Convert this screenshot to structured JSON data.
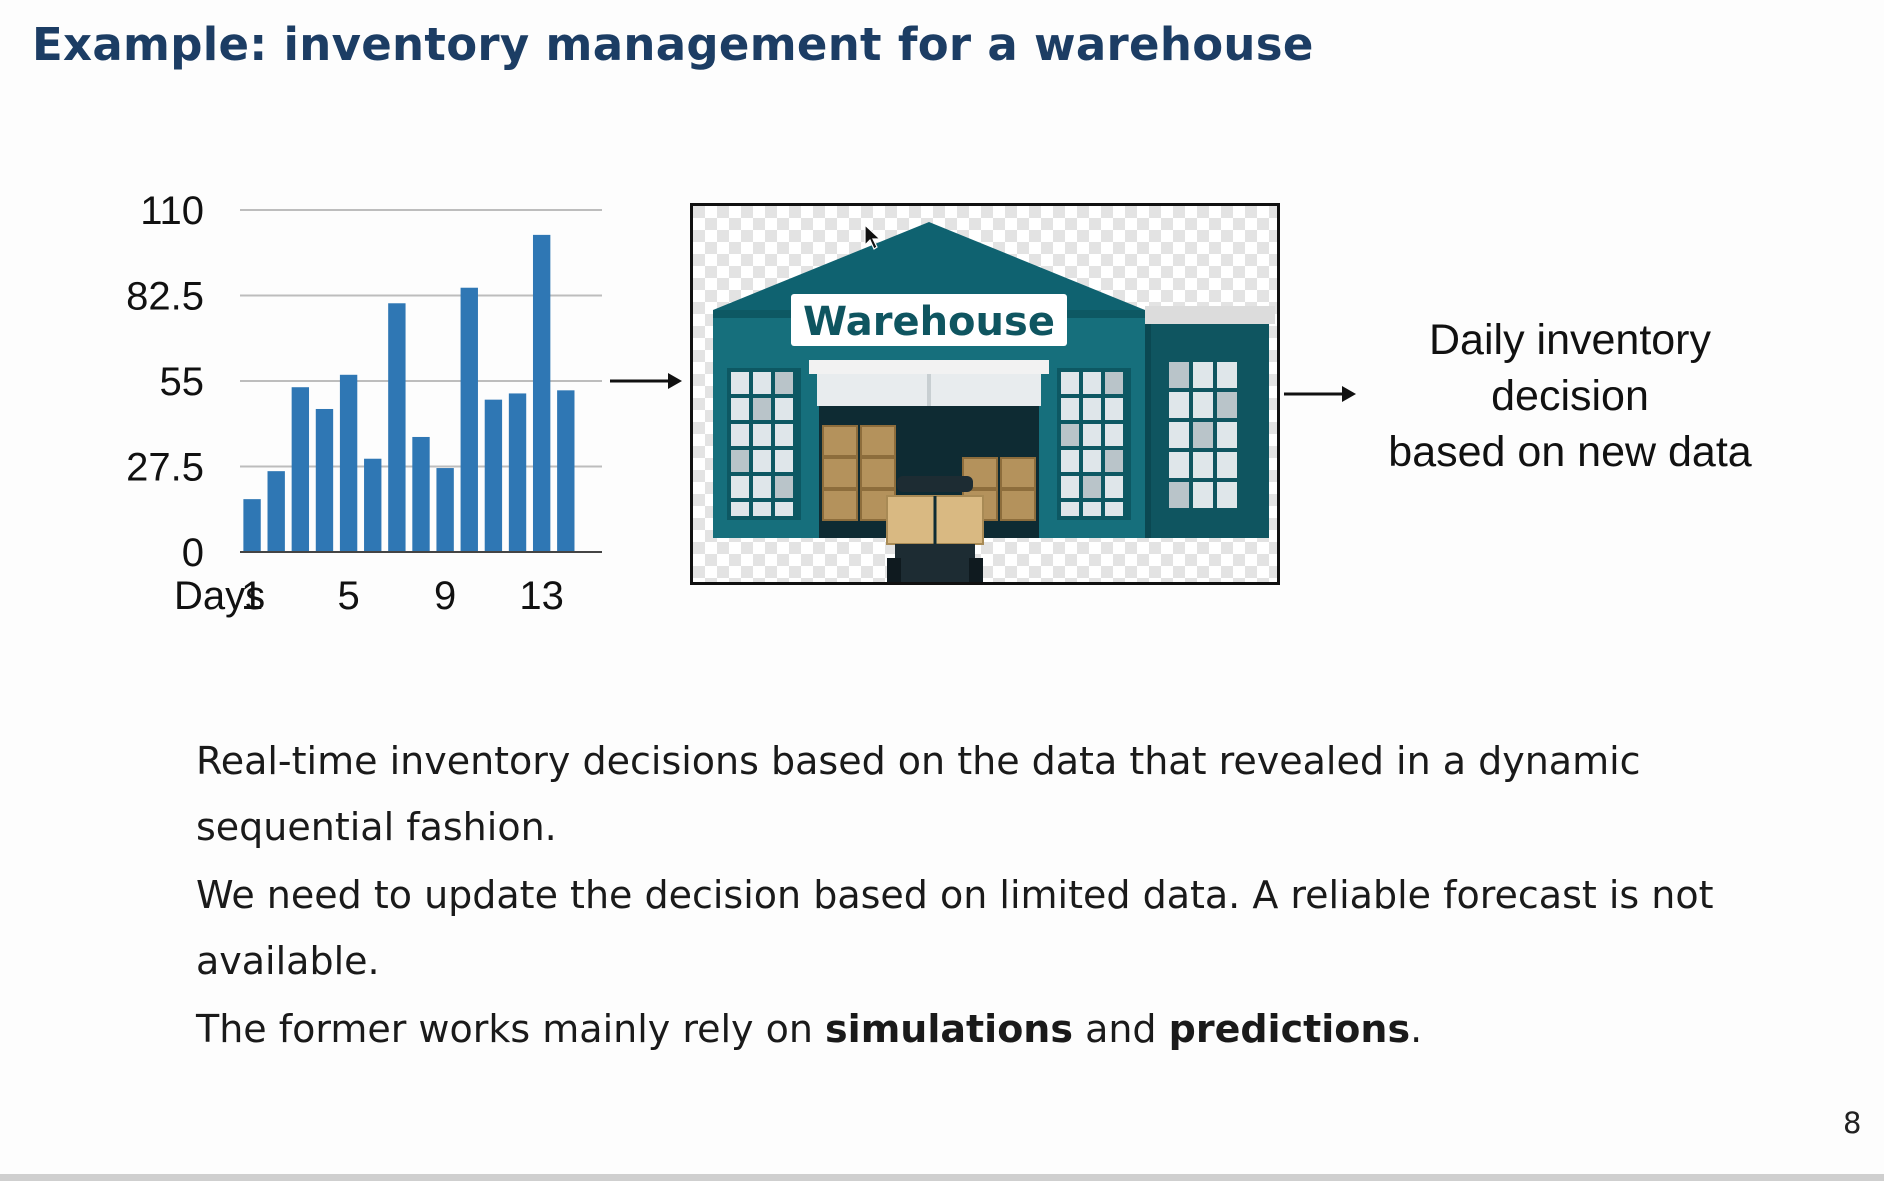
{
  "slide": {
    "title": "Example: inventory management for a warehouse",
    "page_number": "8"
  },
  "chart_data": {
    "type": "bar",
    "ylim": [
      0,
      110
    ],
    "yticks": [
      "0",
      "27.5",
      "55",
      "82.5",
      "110"
    ],
    "xlabel": "Days",
    "xtick_labels": [
      {
        "day": 1,
        "label": "1"
      },
      {
        "day": 5,
        "label": "5"
      },
      {
        "day": 9,
        "label": "9"
      },
      {
        "day": 13,
        "label": "13"
      }
    ],
    "grid": true,
    "bar_color": "#2f77b4",
    "categories": [
      1,
      2,
      3,
      4,
      5,
      6,
      7,
      8,
      9,
      10,
      11,
      12,
      13,
      14,
      15
    ],
    "values": [
      17,
      26,
      53,
      46,
      57,
      30,
      80,
      37,
      27,
      85,
      49,
      51,
      102,
      52,
      0
    ]
  },
  "illustration": {
    "sign_text": "Warehouse",
    "colors": {
      "building": "#166f7c",
      "roof": "#0f6270",
      "door_dark": "#0e2b33",
      "boxes": "#b4925c",
      "windows": "#dfe6ea"
    }
  },
  "decision": {
    "lines": [
      "Daily inventory",
      "decision",
      "based on new data"
    ]
  },
  "body": {
    "p1": "Real-time inventory decisions based on the data that revealed in a dynamic sequential fashion.",
    "p2": "We need to update the decision based on limited data.  A reliable forecast is not available.",
    "p3_before": "The former works mainly rely on ",
    "p3_bold1": "simulations",
    "p3_mid": " and ",
    "p3_bold2": "predictions",
    "p3_after": "."
  },
  "colors": {
    "title": "#1c3d64",
    "accent_bar": "#2f77b4"
  }
}
